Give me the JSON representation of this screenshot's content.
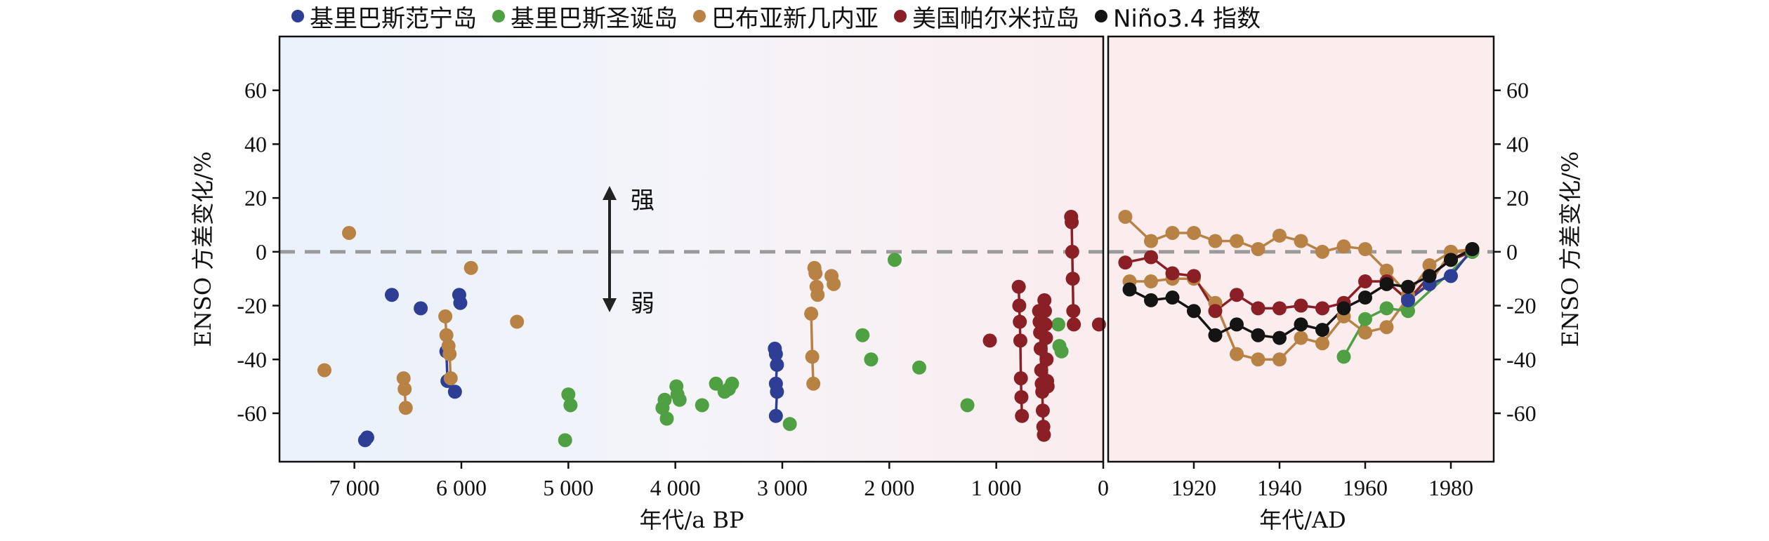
{
  "legend": [
    {
      "label": "基里巴斯范宁岛",
      "color": "#2e3e95"
    },
    {
      "label": "基里巴斯圣诞岛",
      "color": "#4ea043"
    },
    {
      "label": "巴布亚新几内亚",
      "color": "#b98245"
    },
    {
      "label": "美国帕尔米拉岛",
      "color": "#8a1f25"
    },
    {
      "label": "Niño3.4 指数",
      "color": "#141414"
    }
  ],
  "chart_data": [
    {
      "type": "scatter",
      "panel": "left",
      "xlabel": "年代/a BP",
      "ylabel": "ENSO 方差变化/%",
      "xlim": [
        7700,
        0
      ],
      "ylim": [
        -78,
        80
      ],
      "x_ticks": [
        7000,
        6000,
        5000,
        4000,
        3000,
        2000,
        1000,
        0
      ],
      "x_tick_labels": [
        "7 000",
        "6 000",
        "5 000",
        "4 000",
        "3 000",
        "2 000",
        "1 000",
        "0"
      ],
      "y_ticks": [
        -60,
        -40,
        -20,
        0,
        20,
        40,
        60
      ],
      "reference_line": 0,
      "annotations": {
        "up": "强",
        "down": "弱"
      },
      "background": "gradient blue to pink",
      "series": [
        {
          "name": "基里巴斯范宁岛",
          "color": "#2e3e95",
          "points": [
            [
              6900,
              -70
            ],
            [
              6880,
              -69
            ],
            [
              6650,
              -16
            ],
            [
              6380,
              -21
            ],
            [
              6140,
              -37
            ],
            [
              6130,
              -48
            ],
            [
              6060,
              -52
            ],
            [
              6020,
              -16
            ],
            [
              6010,
              -19
            ],
            [
              3070,
              -36
            ],
            [
              3060,
              -38
            ],
            [
              3050,
              -42
            ],
            [
              3060,
              -49
            ],
            [
              3050,
              -52
            ],
            [
              3060,
              -61
            ]
          ],
          "connected_groups": [
            [
              [
                6140,
                -37
              ],
              [
                6130,
                -48
              ],
              [
                6060,
                -52
              ]
            ],
            [
              [
                3070,
                -36
              ],
              [
                3060,
                -38
              ],
              [
                3050,
                -42
              ],
              [
                3060,
                -49
              ],
              [
                3050,
                -52
              ],
              [
                3060,
                -61
              ]
            ]
          ]
        },
        {
          "name": "基里巴斯圣诞岛",
          "color": "#4ea043",
          "points": [
            [
              5030,
              -70
            ],
            [
              5000,
              -53
            ],
            [
              4980,
              -57
            ],
            [
              4120,
              -58
            ],
            [
              4100,
              -55
            ],
            [
              4080,
              -62
            ],
            [
              3990,
              -50
            ],
            [
              3980,
              -53
            ],
            [
              3960,
              -55
            ],
            [
              3750,
              -57
            ],
            [
              3620,
              -49
            ],
            [
              3540,
              -52
            ],
            [
              3500,
              -51
            ],
            [
              3470,
              -49
            ],
            [
              2930,
              -64
            ],
            [
              2250,
              -31
            ],
            [
              2170,
              -40
            ],
            [
              1950,
              -3
            ],
            [
              1720,
              -43
            ],
            [
              1270,
              -57
            ],
            [
              420,
              -27
            ],
            [
              410,
              -35
            ],
            [
              390,
              -37
            ]
          ]
        },
        {
          "name": "巴布亚新几内亚",
          "color": "#b98245",
          "points": [
            [
              7280,
              -44
            ],
            [
              7050,
              7
            ],
            [
              6540,
              -47
            ],
            [
              6530,
              -51
            ],
            [
              6520,
              -58
            ],
            [
              6150,
              -24
            ],
            [
              6140,
              -31
            ],
            [
              6120,
              -35
            ],
            [
              6110,
              -38
            ],
            [
              6100,
              -47
            ],
            [
              5910,
              -6
            ],
            [
              5480,
              -26
            ],
            [
              2730,
              -23
            ],
            [
              2720,
              -39
            ],
            [
              2710,
              -49
            ],
            [
              2700,
              -6
            ],
            [
              2690,
              -8
            ],
            [
              2680,
              -13
            ],
            [
              2670,
              -16
            ],
            [
              2540,
              -9
            ],
            [
              2520,
              -12
            ]
          ],
          "connected_groups": [
            [
              [
                6540,
                -47
              ],
              [
                6530,
                -51
              ],
              [
                6520,
                -58
              ]
            ],
            [
              [
                6150,
                -24
              ],
              [
                6140,
                -31
              ],
              [
                6120,
                -35
              ],
              [
                6110,
                -38
              ],
              [
                6100,
                -47
              ]
            ],
            [
              [
                2730,
                -23
              ],
              [
                2720,
                -39
              ],
              [
                2710,
                -49
              ]
            ],
            [
              [
                2700,
                -6
              ],
              [
                2690,
                -8
              ],
              [
                2680,
                -13
              ],
              [
                2670,
                -16
              ]
            ]
          ]
        },
        {
          "name": "美国帕尔米拉岛",
          "color": "#8a1f25",
          "points": [
            [
              1060,
              -33
            ],
            [
              790,
              -13
            ],
            [
              785,
              -20
            ],
            [
              780,
              -26
            ],
            [
              775,
              -33
            ],
            [
              770,
              -47
            ],
            [
              765,
              -54
            ],
            [
              760,
              -61
            ],
            [
              600,
              -22
            ],
            [
              595,
              -26
            ],
            [
              590,
              -30
            ],
            [
              585,
              -36
            ],
            [
              580,
              -44
            ],
            [
              575,
              -49
            ],
            [
              570,
              -52
            ],
            [
              565,
              -59
            ],
            [
              560,
              -65
            ],
            [
              555,
              -68
            ],
            [
              550,
              -18
            ],
            [
              545,
              -22
            ],
            [
              540,
              -27
            ],
            [
              535,
              -32
            ],
            [
              530,
              -40
            ],
            [
              525,
              -48
            ],
            [
              520,
              -50
            ],
            [
              300,
              13
            ],
            [
              295,
              11
            ],
            [
              290,
              0
            ],
            [
              285,
              -10
            ],
            [
              280,
              -22
            ],
            [
              275,
              -27
            ],
            [
              40,
              -27
            ]
          ],
          "connected_groups": [
            [
              [
                790,
                -13
              ],
              [
                785,
                -20
              ],
              [
                780,
                -26
              ],
              [
                775,
                -33
              ],
              [
                770,
                -47
              ],
              [
                765,
                -54
              ],
              [
                760,
                -61
              ]
            ],
            [
              [
                600,
                -22
              ],
              [
                595,
                -26
              ],
              [
                590,
                -30
              ],
              [
                585,
                -36
              ],
              [
                580,
                -44
              ],
              [
                575,
                -49
              ],
              [
                570,
                -52
              ],
              [
                565,
                -59
              ],
              [
                560,
                -65
              ],
              [
                555,
                -68
              ]
            ],
            [
              [
                550,
                -18
              ],
              [
                545,
                -22
              ],
              [
                540,
                -27
              ],
              [
                535,
                -32
              ],
              [
                530,
                -40
              ],
              [
                525,
                -48
              ],
              [
                520,
                -50
              ]
            ],
            [
              [
                300,
                13
              ],
              [
                295,
                11
              ],
              [
                290,
                0
              ],
              [
                285,
                -10
              ],
              [
                280,
                -22
              ],
              [
                275,
                -27
              ]
            ]
          ]
        }
      ]
    },
    {
      "type": "line",
      "panel": "right",
      "xlabel": "年代/AD",
      "ylabel": "ENSO 方差变化/%",
      "xlim": [
        1900,
        1990
      ],
      "ylim": [
        -78,
        80
      ],
      "x_ticks": [
        1920,
        1940,
        1960,
        1980
      ],
      "x_tick_labels": [
        "1920",
        "1940",
        "1960",
        "1980"
      ],
      "y_ticks": [
        -60,
        -40,
        -20,
        0,
        20,
        40,
        60
      ],
      "reference_line": 0,
      "background": "pink",
      "series": [
        {
          "name": "巴布亚新几内亚 (a)",
          "color": "#b98245",
          "x": [
            1904,
            1910,
            1915,
            1920,
            1925,
            1930,
            1935,
            1940,
            1945,
            1950,
            1955,
            1960,
            1965,
            1970,
            1975,
            1980,
            1985
          ],
          "y": [
            13,
            4,
            7,
            7,
            4,
            4,
            1,
            6,
            4,
            0,
            2,
            1,
            -7,
            -16,
            -5,
            0,
            0
          ]
        },
        {
          "name": "巴布亚新几内亚 (b)",
          "color": "#b98245",
          "x": [
            1905,
            1910,
            1915,
            1920,
            1925,
            1930,
            1935,
            1940,
            1945,
            1950,
            1955,
            1960,
            1965,
            1970,
            1975,
            1980,
            1985
          ],
          "y": [
            -11,
            -11,
            -10,
            -10,
            -19,
            -38,
            -40,
            -40,
            -32,
            -34,
            -24,
            -30,
            -28,
            -17,
            -12,
            0,
            1
          ]
        },
        {
          "name": "美国帕尔米拉岛",
          "color": "#8a1f25",
          "x": [
            1904,
            1910,
            1915,
            1920,
            1925,
            1930,
            1935,
            1940,
            1945,
            1950,
            1955,
            1960,
            1965,
            1970,
            1975,
            1980,
            1985
          ],
          "y": [
            -4,
            -2,
            -8,
            -9,
            -22,
            -16,
            -21,
            -21,
            -20,
            -21,
            -19,
            -11,
            -11,
            -18,
            -9,
            -3,
            0
          ]
        },
        {
          "name": "基里巴斯圣诞岛",
          "color": "#4ea043",
          "x": [
            1955,
            1960,
            1965,
            1970,
            1985
          ],
          "y": [
            -39,
            -25,
            -21,
            -22,
            0
          ]
        },
        {
          "name": "基里巴斯范宁岛",
          "color": "#2e3e95",
          "x": [
            1970,
            1975,
            1980,
            1985
          ],
          "y": [
            -18,
            -12,
            -9,
            1
          ]
        },
        {
          "name": "Niño3.4 指数",
          "color": "#141414",
          "x": [
            1905,
            1910,
            1915,
            1920,
            1925,
            1930,
            1935,
            1940,
            1945,
            1950,
            1955,
            1960,
            1965,
            1970,
            1975,
            1980,
            1985
          ],
          "y": [
            -14,
            -18,
            -17,
            -22,
            -31,
            -27,
            -31,
            -32,
            -27,
            -29,
            -21,
            -17,
            -12,
            -13,
            -9,
            -3,
            1
          ]
        }
      ]
    }
  ]
}
